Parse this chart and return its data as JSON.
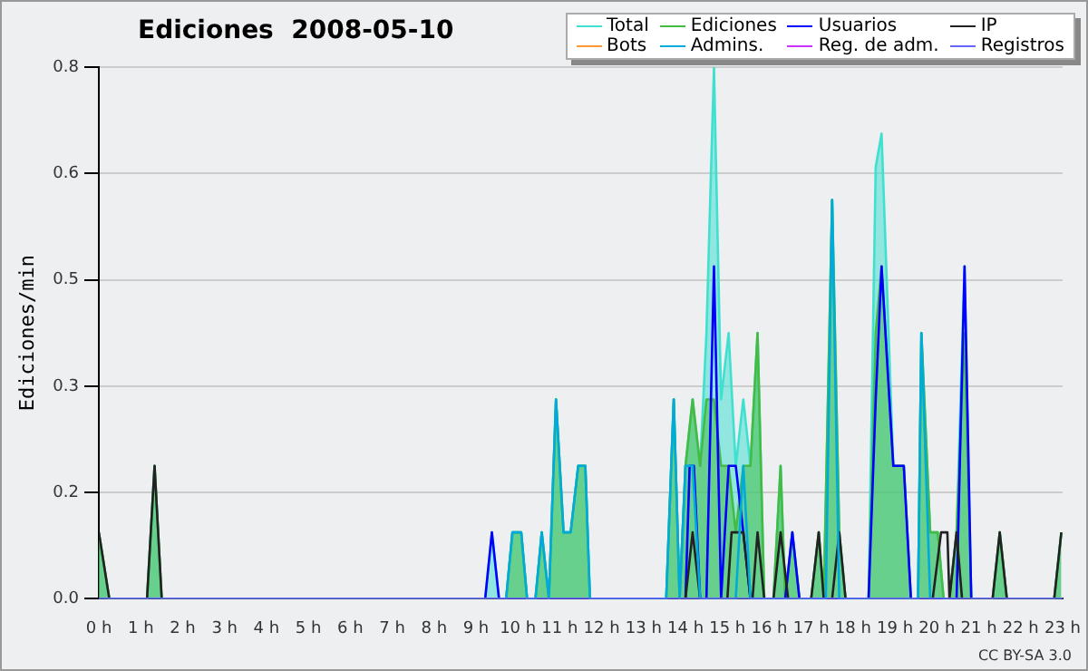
{
  "chart_data": {
    "type": "line",
    "title": "Ediciones  2008-05-10",
    "ylabel": "Ediciones/min",
    "xlim": [
      0,
      23
    ],
    "xticks": [
      {
        "value": 0,
        "label": "0 h"
      },
      {
        "value": 1,
        "label": "1 h"
      },
      {
        "value": 2,
        "label": "2 h"
      },
      {
        "value": 3,
        "label": "3 h"
      },
      {
        "value": 4,
        "label": "4 h"
      },
      {
        "value": 5,
        "label": "5 h"
      },
      {
        "value": 6,
        "label": "6 h"
      },
      {
        "value": 7,
        "label": "7 h"
      },
      {
        "value": 8,
        "label": "8 h"
      },
      {
        "value": 9,
        "label": "9 h"
      },
      {
        "value": 10,
        "label": "10 h"
      },
      {
        "value": 11,
        "label": "11 h"
      },
      {
        "value": 12,
        "label": "12 h"
      },
      {
        "value": 13,
        "label": "13 h"
      },
      {
        "value": 14,
        "label": "14 h"
      },
      {
        "value": 15,
        "label": "15 h"
      },
      {
        "value": 16,
        "label": "16 h"
      },
      {
        "value": 17,
        "label": "17 h"
      },
      {
        "value": 18,
        "label": "18 h"
      },
      {
        "value": 19,
        "label": "19 h"
      },
      {
        "value": 20,
        "label": "20 h"
      },
      {
        "value": 21,
        "label": "21 h"
      },
      {
        "value": 22,
        "label": "22 h"
      },
      {
        "value": 23,
        "label": "23 h"
      }
    ],
    "ylim": [
      0,
      0.8
    ],
    "yticks": [
      {
        "value": 0,
        "label": "0.0"
      },
      {
        "value": 0.16,
        "label": "0.2"
      },
      {
        "value": 0.32,
        "label": "0.3"
      },
      {
        "value": 0.48,
        "label": "0.5"
      },
      {
        "value": 0.64,
        "label": "0.6"
      },
      {
        "value": 0.8,
        "label": "0.8"
      }
    ],
    "grid": "y",
    "legend": "top right",
    "marker": "none",
    "annotations": [
      "CC BY-SA 3.0"
    ],
    "series": [
      {
        "name": "Total",
        "type": "area",
        "color": "#40e0d0",
        "x": [
          0,
          0.25,
          1.15,
          1.33,
          1.5,
          9.22,
          9.38,
          9.55,
          9.72,
          9.87,
          10.08,
          10.22,
          10.42,
          10.57,
          10.74,
          10.91,
          11.09,
          11.26,
          11.44,
          11.61,
          11.72,
          13.54,
          13.72,
          13.86,
          14.0,
          14.17,
          14.35,
          14.5,
          14.68,
          14.85,
          15.03,
          15.2,
          15.38,
          15.55,
          15.72,
          15.88,
          16.1,
          16.27,
          16.38,
          16.55,
          16.72,
          17.0,
          17.18,
          17.3,
          17.5,
          17.67,
          17.82,
          18.37,
          18.54,
          18.68,
          18.96,
          19.21,
          19.38,
          19.55,
          19.63,
          19.84,
          20.02,
          20.16,
          20.3,
          20.47,
          20.66,
          20.82,
          21.33,
          21.5,
          21.67,
          22.8,
          22.97
        ],
        "values": [
          0.1,
          0,
          0,
          0.2,
          0,
          0,
          0.1,
          0,
          0,
          0.1,
          0.1,
          0,
          0,
          0.1,
          0,
          0.3,
          0.1,
          0.1,
          0.2,
          0.2,
          0,
          0,
          0.3,
          0,
          0.2,
          0.3,
          0.2,
          0.4,
          0.8,
          0.3,
          0.4,
          0.2,
          0.3,
          0.2,
          0.4,
          0,
          0,
          0.2,
          0,
          0.1,
          0,
          0,
          0.1,
          0,
          0.6,
          0.1,
          0,
          0,
          0.65,
          0.7,
          0.2,
          0.2,
          0,
          0,
          0.4,
          0.1,
          0.1,
          0,
          0,
          0.1,
          0.5,
          0,
          0,
          0.1,
          0,
          0,
          0.1
        ]
      },
      {
        "name": "Ediciones",
        "type": "area",
        "color": "#44bb44",
        "x": [
          0,
          0.25,
          1.15,
          1.33,
          1.5,
          9.72,
          9.87,
          10.08,
          10.22,
          10.42,
          10.57,
          10.74,
          10.91,
          11.09,
          11.26,
          11.44,
          11.61,
          11.72,
          13.54,
          13.72,
          13.86,
          14.0,
          14.17,
          14.35,
          14.5,
          14.68,
          14.85,
          15.03,
          15.2,
          15.38,
          15.55,
          15.72,
          15.88,
          16.1,
          16.27,
          16.38,
          16.55,
          16.72,
          17.0,
          17.18,
          17.3,
          17.5,
          17.67,
          17.82,
          18.37,
          18.54,
          18.68,
          18.96,
          19.21,
          19.38,
          19.55,
          19.63,
          19.84,
          20.02,
          20.16,
          20.3,
          20.47,
          20.66,
          20.82,
          21.33,
          21.5,
          21.67,
          22.8,
          22.97
        ],
        "values": [
          0.1,
          0,
          0,
          0.2,
          0,
          0,
          0.1,
          0.1,
          0,
          0,
          0.1,
          0,
          0.3,
          0.1,
          0.1,
          0.2,
          0.2,
          0,
          0,
          0.3,
          0,
          0.2,
          0.3,
          0.2,
          0.3,
          0.3,
          0.2,
          0.2,
          0.1,
          0.2,
          0.2,
          0.4,
          0,
          0,
          0.2,
          0,
          0.1,
          0,
          0,
          0.1,
          0,
          0.6,
          0.1,
          0,
          0,
          0.4,
          0.5,
          0.2,
          0.2,
          0,
          0,
          0.4,
          0.1,
          0.1,
          0,
          0,
          0.1,
          0.4,
          0,
          0,
          0.1,
          0,
          0,
          0.1
        ]
      },
      {
        "name": "Usuarios",
        "type": "line",
        "color": "#0000ff",
        "x": [
          9.22,
          9.38,
          9.55,
          14.0,
          14.1,
          14.2,
          14.35,
          14.5,
          14.68,
          14.85,
          15.03,
          15.2,
          15.38,
          15.55,
          16.38,
          16.55,
          16.72,
          18.37,
          18.54,
          18.68,
          18.96,
          19.21,
          19.38,
          20.47,
          20.66,
          20.82
        ],
        "values": [
          0,
          0.1,
          0,
          0,
          0.2,
          0.2,
          0,
          0,
          0.5,
          0,
          0.2,
          0.2,
          0.1,
          0,
          0,
          0.1,
          0,
          0,
          0.3,
          0.5,
          0.2,
          0.2,
          0,
          0,
          0.5,
          0
        ]
      },
      {
        "name": "IP",
        "type": "line",
        "color": "#222222",
        "x": [
          0,
          0.25,
          1.15,
          1.33,
          1.5,
          14.0,
          14.17,
          14.35,
          15.0,
          15.1,
          15.38,
          15.55,
          15.6,
          15.72,
          15.88,
          16.1,
          16.27,
          16.45,
          17.0,
          17.18,
          17.3,
          17.5,
          17.67,
          17.82,
          19.9,
          20.1,
          20.25,
          20.3,
          20.47,
          20.6,
          21.33,
          21.5,
          21.67,
          22.8,
          22.97
        ],
        "values": [
          0.1,
          0,
          0,
          0.2,
          0,
          0,
          0.1,
          0,
          0,
          0.1,
          0.1,
          0,
          0,
          0.1,
          0,
          0,
          0.1,
          0,
          0,
          0.1,
          0,
          0,
          0.1,
          0,
          0,
          0.1,
          0.1,
          0,
          0.1,
          0,
          0,
          0.1,
          0,
          0,
          0.1
        ]
      },
      {
        "name": "Bots",
        "type": "line",
        "color": "#ff9933"
      },
      {
        "name": "Admins.",
        "type": "line",
        "color": "#00aadd",
        "x": [
          9.72,
          9.87,
          10.08,
          10.22,
          10.42,
          10.57,
          10.74,
          10.91,
          11.09,
          11.26,
          11.44,
          11.61,
          11.72,
          13.54,
          13.72,
          13.86,
          14.0,
          14.17,
          14.35,
          15.2,
          15.38,
          15.55,
          17.35,
          17.5,
          17.67,
          19.55,
          19.63,
          19.84
        ],
        "values": [
          0,
          0.1,
          0.1,
          0,
          0,
          0.1,
          0,
          0.3,
          0.1,
          0.1,
          0.2,
          0.2,
          0,
          0,
          0.3,
          0,
          0.2,
          0.2,
          0,
          0,
          0.2,
          0,
          0,
          0.6,
          0,
          0,
          0.4,
          0
        ]
      },
      {
        "name": "Reg. de adm.",
        "type": "line",
        "color": "#cc33ff"
      },
      {
        "name": "Registros",
        "type": "line",
        "color": "#6666ff",
        "x": [
          0,
          23
        ],
        "values": [
          0,
          0
        ]
      }
    ]
  }
}
